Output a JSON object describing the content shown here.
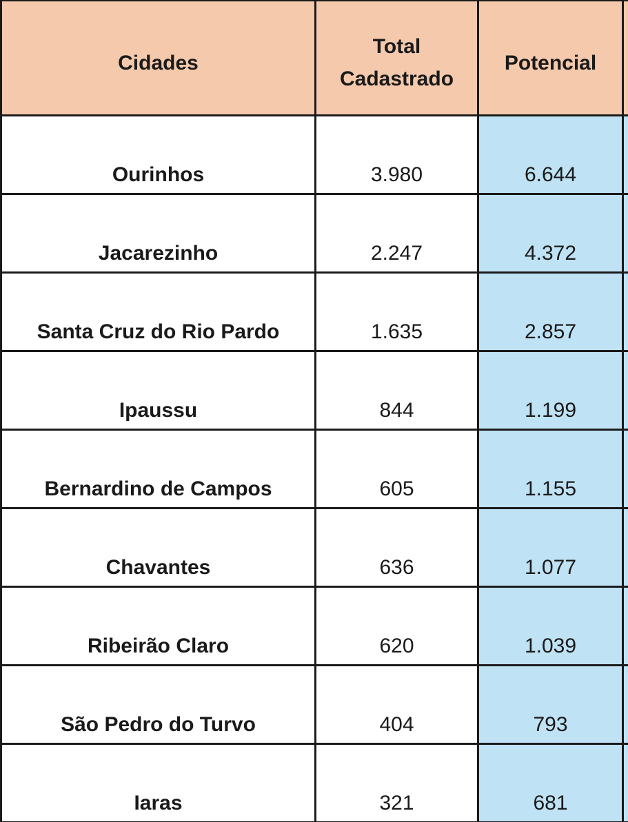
{
  "chart_data": {
    "type": "table",
    "columns": [
      "Cidades",
      "Total Cadastrado",
      "Potencial"
    ],
    "rows": [
      {
        "cidade": "Ourinhos",
        "total_cadastrado": "3.980",
        "potencial": "6.644"
      },
      {
        "cidade": "Jacarezinho",
        "total_cadastrado": "2.247",
        "potencial": "4.372"
      },
      {
        "cidade": "Santa Cruz do Rio Pardo",
        "total_cadastrado": "1.635",
        "potencial": "2.857"
      },
      {
        "cidade": "Ipaussu",
        "total_cadastrado": "844",
        "potencial": "1.199"
      },
      {
        "cidade": "Bernardino de Campos",
        "total_cadastrado": "605",
        "potencial": "1.155"
      },
      {
        "cidade": "Chavantes",
        "total_cadastrado": "636",
        "potencial": "1.077"
      },
      {
        "cidade": "Ribeirão Claro",
        "total_cadastrado": "620",
        "potencial": "1.039"
      },
      {
        "cidade": "São Pedro do Turvo",
        "total_cadastrado": "404",
        "potencial": "793"
      },
      {
        "cidade": "Iaras",
        "total_cadastrado": "321",
        "potencial": "681"
      }
    ],
    "values": {
      "total_cadastrado": [
        3980,
        2247,
        1635,
        844,
        605,
        636,
        620,
        404,
        321
      ],
      "potencial": [
        6644,
        4372,
        2857,
        1199,
        1155,
        1077,
        1039,
        793,
        681
      ]
    },
    "layout": {
      "grid": true,
      "header_position": "top"
    }
  },
  "colors": {
    "header_bg": "#F5C9AC",
    "potencial_bg": "#BFE2F4",
    "border": "#1A1A1A",
    "text": "#1A1A1A",
    "row_bg": "#FFFFFF"
  }
}
